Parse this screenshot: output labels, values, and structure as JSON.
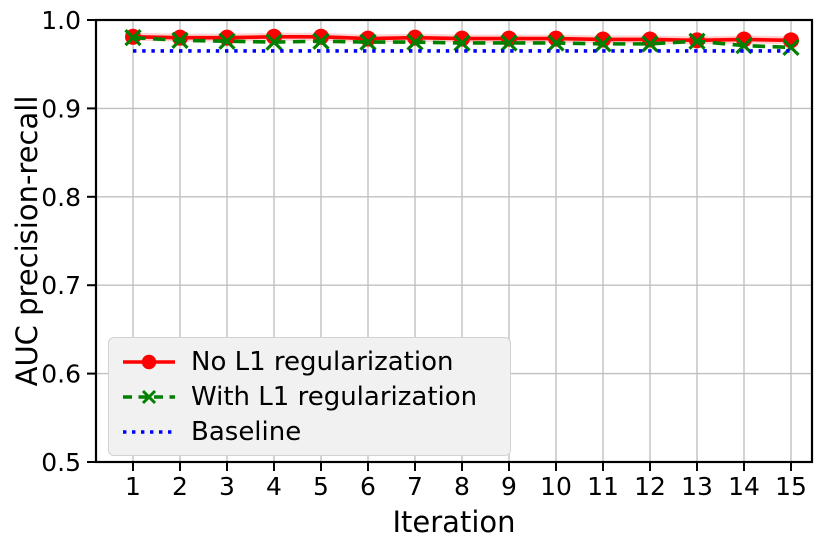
{
  "chart_data": {
    "type": "line",
    "title": "",
    "xlabel": "Iteration",
    "ylabel": "AUC precision-recall",
    "x": [
      1,
      2,
      3,
      4,
      5,
      6,
      7,
      8,
      9,
      10,
      11,
      12,
      13,
      14,
      15
    ],
    "series": [
      {
        "name": "No L1 regularization",
        "color": "#ff0000",
        "linestyle": "solid",
        "marker": "circle",
        "values": [
          0.981,
          0.98,
          0.98,
          0.981,
          0.981,
          0.979,
          0.98,
          0.979,
          0.979,
          0.979,
          0.978,
          0.978,
          0.977,
          0.978,
          0.977
        ]
      },
      {
        "name": "With L1 regularization",
        "color": "#008000",
        "linestyle": "dashed",
        "marker": "x",
        "values": [
          0.98,
          0.977,
          0.976,
          0.975,
          0.976,
          0.975,
          0.975,
          0.974,
          0.974,
          0.974,
          0.973,
          0.973,
          0.976,
          0.971,
          0.969
        ]
      }
    ],
    "baseline": {
      "name": "Baseline",
      "color": "#0000ff",
      "linestyle": "dotted",
      "value": 0.965
    },
    "xticks": [
      "1",
      "2",
      "3",
      "4",
      "5",
      "6",
      "7",
      "8",
      "9",
      "10",
      "11",
      "12",
      "13",
      "14",
      "15"
    ],
    "yticks": [
      "0.5",
      "0.6",
      "0.7",
      "0.8",
      "0.9",
      "1.0"
    ],
    "ylim": [
      0.5,
      1.0
    ],
    "xlim": [
      0.21,
      15.45
    ],
    "grid": true,
    "legend_position": "lower left"
  },
  "colors": {
    "grid": "#c0c0c0",
    "spine": "#000000",
    "tick_label": "#000000",
    "legend_bg": "#f1f1f1",
    "legend_border": "#d2d2d2",
    "background": "#ffffff"
  }
}
